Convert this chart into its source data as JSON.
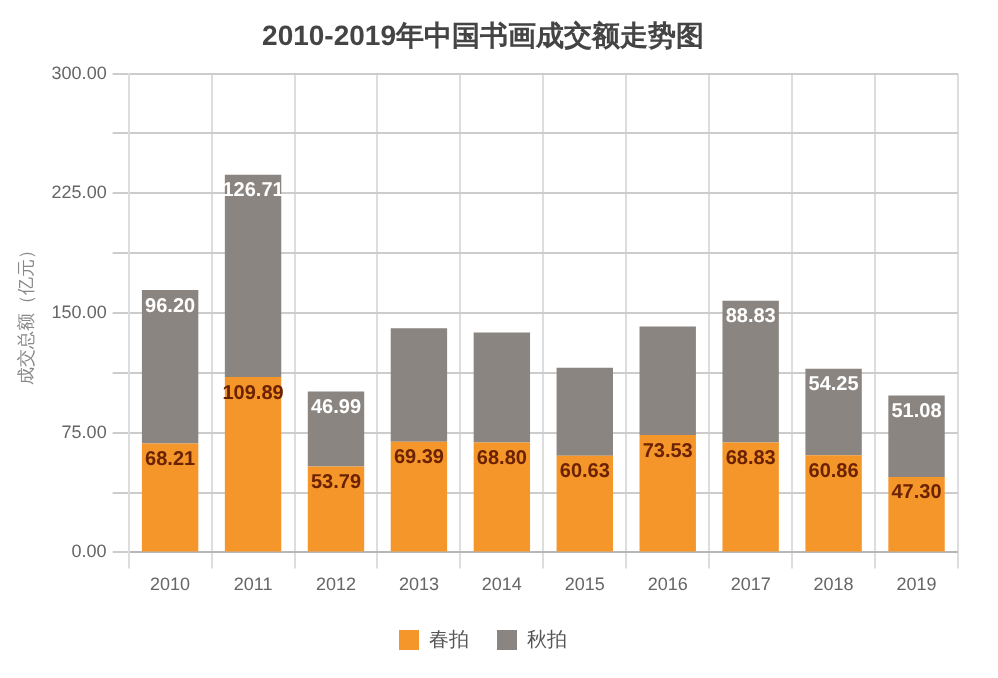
{
  "chart_data": {
    "type": "bar",
    "title": "2010-2019年中国书画成交额走势图",
    "ylabel": "成交总额（亿元）",
    "categories": [
      "2010",
      "2011",
      "2012",
      "2013",
      "2014",
      "2015",
      "2016",
      "2017",
      "2018",
      "2019"
    ],
    "series": [
      {
        "name": "春拍",
        "color": "#f5962a",
        "values": [
          68.21,
          109.89,
          53.79,
          69.39,
          68.8,
          60.63,
          73.53,
          68.83,
          60.86,
          47.3
        ],
        "value_labels": [
          "68.21",
          "109.89",
          "53.79",
          "69.39",
          "68.80",
          "60.63",
          "73.53",
          "68.83",
          "60.86",
          "47.30"
        ]
      },
      {
        "name": "秋拍",
        "color": "#8a8580",
        "values": [
          96.2,
          126.71,
          46.99,
          71,
          69,
          55,
          68,
          88.83,
          54.25,
          51.08
        ],
        "value_labels": [
          "96.20",
          "126.71",
          "46.99",
          null,
          null,
          null,
          null,
          "88.83",
          "54.25",
          "51.08"
        ]
      }
    ],
    "stacked": true,
    "ylim": [
      0,
      300
    ],
    "yticks": [
      {
        "value": 0,
        "label": "0.00"
      },
      {
        "value": 37.5,
        "label": null
      },
      {
        "value": 75,
        "label": "75.00"
      },
      {
        "value": 112.5,
        "label": null
      },
      {
        "value": 150,
        "label": "150.00"
      },
      {
        "value": 187.5,
        "label": null
      },
      {
        "value": 225,
        "label": "225.00"
      },
      {
        "value": 262.5,
        "label": null
      },
      {
        "value": 300,
        "label": "300.00"
      }
    ],
    "grid": true,
    "legend": "bottom"
  }
}
